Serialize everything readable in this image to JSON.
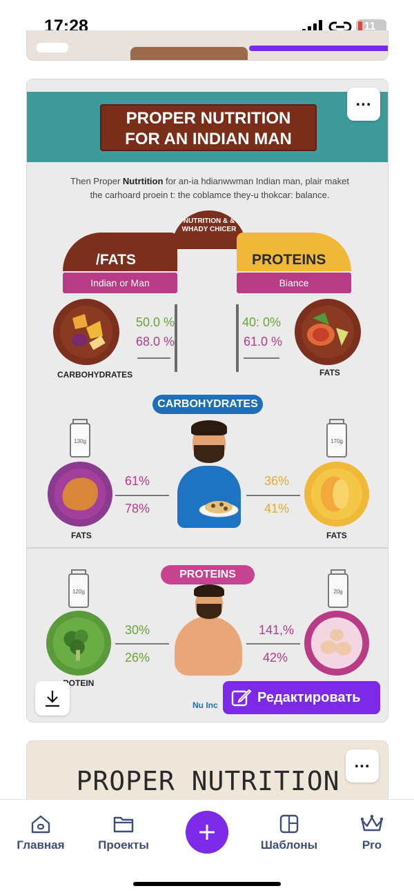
{
  "status": {
    "time": "17:28",
    "battery": "11"
  },
  "card": {
    "title_line1": "PROPER NUTRITION",
    "title_line2": "FOR AN INDIAN MAN",
    "intro_pre": "Then Proper ",
    "intro_bold": "Nutrtition",
    "intro_post": " for an-ia hdianwwman Indian man, plair maket",
    "intro_line2": "the carhoard proein t: the coblamce they-u thokcar: balance.",
    "arch_text": "NUTRITION & & WHADY CHICER",
    "left_banner": "/FATS",
    "left_ribbon": "Indian or Man",
    "right_banner": "PROTEINS",
    "right_ribbon": "Biance",
    "s1_left_pct1": "50.0 %",
    "s1_left_pct2": "68.0 %",
    "s1_right_pct1": "40: 0%",
    "s1_right_pct2": "61.0 %",
    "s1_left_label": "CARBOHYDRATES",
    "s1_right_label": "FATS",
    "pill_carbs": "CARBOHYDRATES",
    "s2_left_pct1": "61%",
    "s2_left_pct2": "78%",
    "s2_right_pct1": "36%",
    "s2_right_pct2": "41%",
    "s2_left_label": "FATS",
    "s2_right_label": "FATS",
    "pill_proteins": "PROTEINS",
    "s3_left_pct1": "30%",
    "s3_left_pct2": "26%",
    "s3_right_pct1": "141,%",
    "s3_right_pct2": "42%",
    "s3_left_label": "ROTEIN",
    "logo": "Nu Inc",
    "edit_label": "Редактировать",
    "jar_left": "130g",
    "jar_right": "170g",
    "jar_left2": "120g",
    "jar_right2": "20g"
  },
  "next_card": {
    "title": "PROPER NUTRITION"
  },
  "tabbar": {
    "home": "Главная",
    "projects": "Проекты",
    "templates": "Шаблоны",
    "pro": "Pro"
  },
  "colors": {
    "accent": "#7d2ae8",
    "teal": "#3f9a9c",
    "brown": "#7b2f1c",
    "magenta": "#b83b86"
  }
}
